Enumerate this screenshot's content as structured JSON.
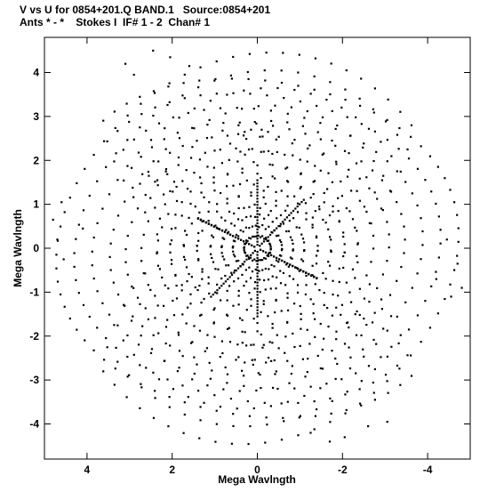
{
  "header": {
    "line1": "V vs U for 0854+201.Q BAND.1   Source:0854+201",
    "line2": "Ants * - *    Stokes I  IF# 1 - 2  Chan# 1"
  },
  "chart_data": {
    "type": "scatter",
    "title": "V vs U for 0854+201.Q BAND.1   Source:0854+201",
    "subtitle": "Ants * - *    Stokes I  IF# 1 - 2  Chan# 1",
    "xlabel": "Mega Wavlngth",
    "ylabel": "Mega Wavlngth",
    "xlim": [
      5.0,
      -5.0
    ],
    "ylim": [
      -4.8,
      4.8
    ],
    "x_reversed": true,
    "x_ticks": [
      4,
      2,
      0,
      -2,
      -4
    ],
    "x_tick_labels": [
      "4",
      "2",
      "0",
      "-2",
      "-4"
    ],
    "y_ticks": [
      4,
      3,
      2,
      1,
      0,
      -1,
      -2,
      -3,
      -4
    ],
    "y_tick_labels": [
      "4",
      "3",
      "2",
      "1",
      "0",
      "-1",
      "-2",
      "-3",
      "-4"
    ],
    "grid": false,
    "point_color": "#000000",
    "arc_tracks": [
      {
        "r": 0.3,
        "start_deg": 0,
        "end_deg": 360
      },
      {
        "r": 0.55,
        "start_deg": 0,
        "end_deg": 360
      },
      {
        "r": 0.8,
        "start_deg": 0,
        "end_deg": 360
      },
      {
        "r": 1.05,
        "start_deg": 0,
        "end_deg": 360
      },
      {
        "r": 1.35,
        "start_deg": 0,
        "end_deg": 360
      },
      {
        "r": 1.65,
        "start_deg": 0,
        "end_deg": 360
      },
      {
        "r": 1.95,
        "start_deg": 0,
        "end_deg": 360
      },
      {
        "r": 2.25,
        "start_deg": 5,
        "end_deg": 355
      },
      {
        "r": 2.6,
        "start_deg": 15,
        "end_deg": 345
      },
      {
        "r": 2.95,
        "start_deg": 20,
        "end_deg": 340
      },
      {
        "r": 3.3,
        "start_deg": 25,
        "end_deg": 335
      },
      {
        "r": 3.7,
        "start_deg": 30,
        "end_deg": 330
      },
      {
        "r": 4.1,
        "start_deg": 35,
        "end_deg": 325
      },
      {
        "r": 4.5,
        "start_deg": 40,
        "end_deg": 320
      }
    ],
    "points": [
      [
        3.1,
        4.2
      ],
      [
        2.45,
        4.5
      ],
      [
        2.05,
        4.35
      ],
      [
        1.6,
        4.15
      ],
      [
        2.9,
        3.95
      ],
      [
        -1.25,
        -4.2
      ],
      [
        -1.7,
        -4.4
      ],
      [
        -2.05,
        -4.3
      ],
      [
        -2.6,
        -4.05
      ],
      [
        -3.05,
        -3.95
      ],
      [
        4.6,
        1.05
      ],
      [
        4.8,
        0.65
      ],
      [
        4.7,
        0.2
      ],
      [
        4.55,
        -0.25
      ],
      [
        4.1,
        0.45
      ],
      [
        -4.45,
        0.2
      ],
      [
        -4.7,
        -0.35
      ],
      [
        -4.8,
        -0.9
      ],
      [
        -4.55,
        -1.1
      ],
      [
        -4.2,
        -0.7
      ],
      [
        0.45,
        2.6
      ],
      [
        0.3,
        2.65
      ],
      [
        0.15,
        2.7
      ],
      [
        -0.1,
        2.7
      ],
      [
        -0.25,
        2.65
      ],
      [
        0.4,
        2.2
      ],
      [
        0.2,
        2.25
      ],
      [
        -0.15,
        2.2
      ],
      [
        -0.35,
        2.15
      ],
      [
        0.3,
        -2.6
      ],
      [
        0.1,
        -2.65
      ],
      [
        -0.2,
        -2.6
      ],
      [
        -0.4,
        -2.55
      ],
      [
        0.35,
        -2.15
      ],
      [
        0.15,
        -2.2
      ],
      [
        -0.15,
        -2.2
      ],
      [
        -0.35,
        -2.15
      ],
      [
        2.15,
        1.75
      ],
      [
        2.35,
        1.55
      ],
      [
        2.55,
        1.65
      ],
      [
        1.9,
        1.4
      ],
      [
        2.05,
        1.3
      ],
      [
        -2.1,
        -1.7
      ],
      [
        -2.3,
        -1.5
      ],
      [
        -2.5,
        -1.6
      ],
      [
        -1.85,
        -1.35
      ],
      [
        -1.45,
        0.95
      ],
      [
        -1.7,
        0.75
      ],
      [
        -1.9,
        0.85
      ],
      [
        -1.3,
        0.7
      ],
      [
        1.4,
        -0.95
      ],
      [
        1.65,
        -0.75
      ],
      [
        1.9,
        -0.85
      ],
      [
        1.3,
        -0.7
      ]
    ]
  }
}
